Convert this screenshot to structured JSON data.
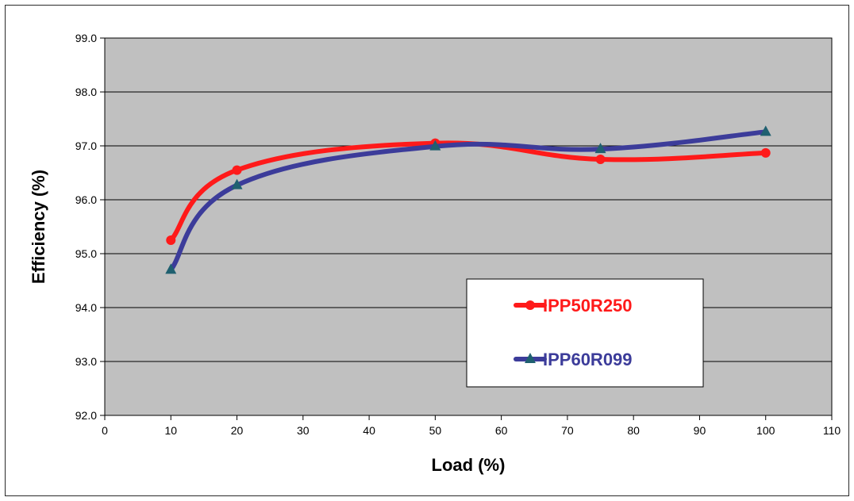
{
  "chart_data": {
    "type": "line",
    "title": "",
    "xlabel": "Load (%)",
    "ylabel": "Efficiency (%)",
    "xlim": [
      0,
      110
    ],
    "ylim": [
      92.0,
      99.0
    ],
    "x_ticks": [
      "0",
      "10",
      "20",
      "30",
      "40",
      "50",
      "60",
      "70",
      "80",
      "90",
      "100",
      "110"
    ],
    "y_ticks": [
      "99.0",
      "98.0",
      "97.0",
      "96.0",
      "95.0",
      "94.0",
      "93.0",
      "92.0"
    ],
    "grid": "horizontal",
    "legend_position": "lower-right",
    "plot_background": "#c0c0c0",
    "series": [
      {
        "name": "IPP50R250",
        "color": "#ff1a1a",
        "marker": "circle",
        "x": [
          10,
          20,
          50,
          75,
          100
        ],
        "y": [
          95.25,
          96.55,
          97.05,
          96.75,
          96.87
        ]
      },
      {
        "name": "IPP60R099",
        "color": "#3c3c9a",
        "marker": "triangle",
        "x": [
          10,
          20,
          50,
          75,
          100
        ],
        "y": [
          94.7,
          96.27,
          96.99,
          96.94,
          97.26
        ]
      }
    ]
  }
}
